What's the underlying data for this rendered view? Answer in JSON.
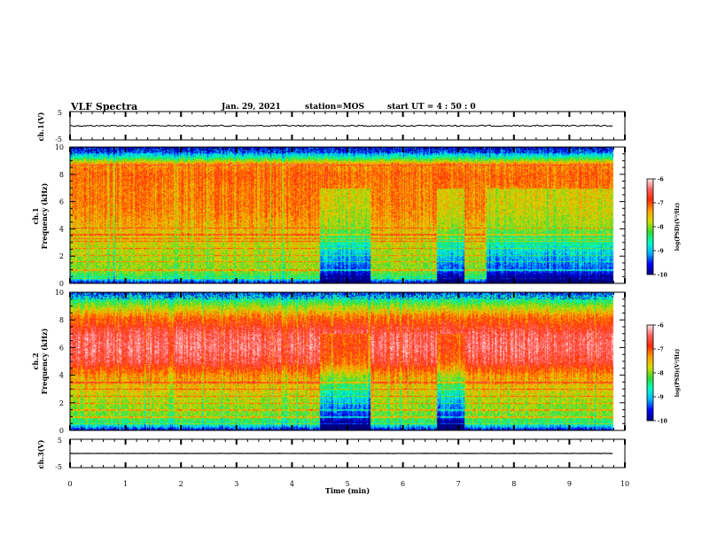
{
  "header": {
    "title": "VLF Spectra",
    "date": "Jan. 29, 2021",
    "station": "station=MOS",
    "start": "start UT =  4 : 50 : 0"
  },
  "colors": {
    "spectrogram_scale": [
      "#000080",
      "#0000ff",
      "#00b4ff",
      "#00ffc8",
      "#32dc32",
      "#d2dc00",
      "#ffa000",
      "#ff2800",
      "#ff6060",
      "#ffe6e6"
    ]
  },
  "chart_data": [
    {
      "type": "line",
      "name": "ch.1 waveform",
      "ylabel": "ch.1(V)",
      "ylim": [
        -5,
        5
      ],
      "yticks": [
        "5",
        "-5"
      ],
      "xlim": [
        0,
        10
      ],
      "series": [
        {
          "x": [
            0,
            9.8
          ],
          "y": [
            0,
            0
          ]
        }
      ]
    },
    {
      "type": "heatmap",
      "ylabel": "ch.1\nFrequency (kHz)",
      "xlim": [
        0,
        10
      ],
      "ylim": [
        0,
        10
      ],
      "xdata_end": 9.8,
      "yticks": [
        "0",
        "2",
        "4",
        "6",
        "8",
        "10"
      ],
      "colorbar": {
        "label": "log(PSD)(V²/Hz)",
        "range": [
          -10,
          -6
        ],
        "ticks": [
          "-6",
          "-7",
          "-8",
          "-9",
          "-10"
        ]
      },
      "spectral_profile_freq_khz": [
        0,
        0.5,
        1,
        2,
        3,
        4,
        5,
        6,
        7,
        8,
        8.8,
        9.2,
        9.6,
        10
      ],
      "spectral_profile_log_psd": [
        -9.8,
        -8.4,
        -8.0,
        -7.9,
        -7.7,
        -7.5,
        -7.3,
        -7.2,
        -7.2,
        -7.1,
        -7.3,
        -8.4,
        -9.2,
        -9.6
      ],
      "quiet_intervals_min": [
        [
          4.5,
          5.4
        ],
        [
          6.6,
          7.1
        ],
        [
          7.5,
          9.8
        ]
      ],
      "line_interference_khz": [
        0.4,
        1.0,
        1.6,
        2.1,
        2.6,
        3.1,
        3.3,
        3.6,
        4.1,
        8.7
      ]
    },
    {
      "type": "heatmap",
      "ylabel": "ch.2\nFrequency (kHz)",
      "xlim": [
        0,
        10
      ],
      "ylim": [
        0,
        10
      ],
      "xdata_end": 9.8,
      "yticks": [
        "0",
        "2",
        "4",
        "6",
        "8",
        "10"
      ],
      "colorbar": {
        "label": "log(PSD)(V²/Hz)",
        "range": [
          -10,
          -6
        ],
        "ticks": [
          "-6",
          "-7",
          "-8",
          "-9",
          "-10"
        ]
      },
      "spectral_profile_freq_khz": [
        0,
        0.5,
        1,
        2,
        3,
        4,
        5,
        6,
        7,
        7.6,
        8.2,
        9,
        9.6,
        10
      ],
      "spectral_profile_log_psd": [
        -9.8,
        -8.5,
        -8.1,
        -7.9,
        -7.6,
        -7.3,
        -6.6,
        -6.4,
        -6.5,
        -6.8,
        -7.1,
        -7.9,
        -8.6,
        -9.3
      ],
      "quiet_intervals_min": [
        [
          4.5,
          5.4
        ],
        [
          6.6,
          7.1
        ]
      ],
      "line_interference_khz": [
        0.5,
        1.0,
        1.5,
        2.0,
        2.5,
        3.0,
        3.5
      ]
    },
    {
      "type": "line",
      "name": "ch.3 waveform",
      "ylabel": "ch.3(V)",
      "ylim": [
        -5,
        5
      ],
      "yticks": [
        "5",
        "-5"
      ],
      "xlim": [
        0,
        10
      ],
      "series": [
        {
          "x": [
            0,
            9.8
          ],
          "y": [
            0,
            0
          ]
        }
      ]
    }
  ],
  "xaxis": {
    "label": "Time (min)",
    "ticks": [
      "0",
      "1",
      "2",
      "3",
      "4",
      "5",
      "6",
      "7",
      "8",
      "9",
      "10"
    ]
  }
}
